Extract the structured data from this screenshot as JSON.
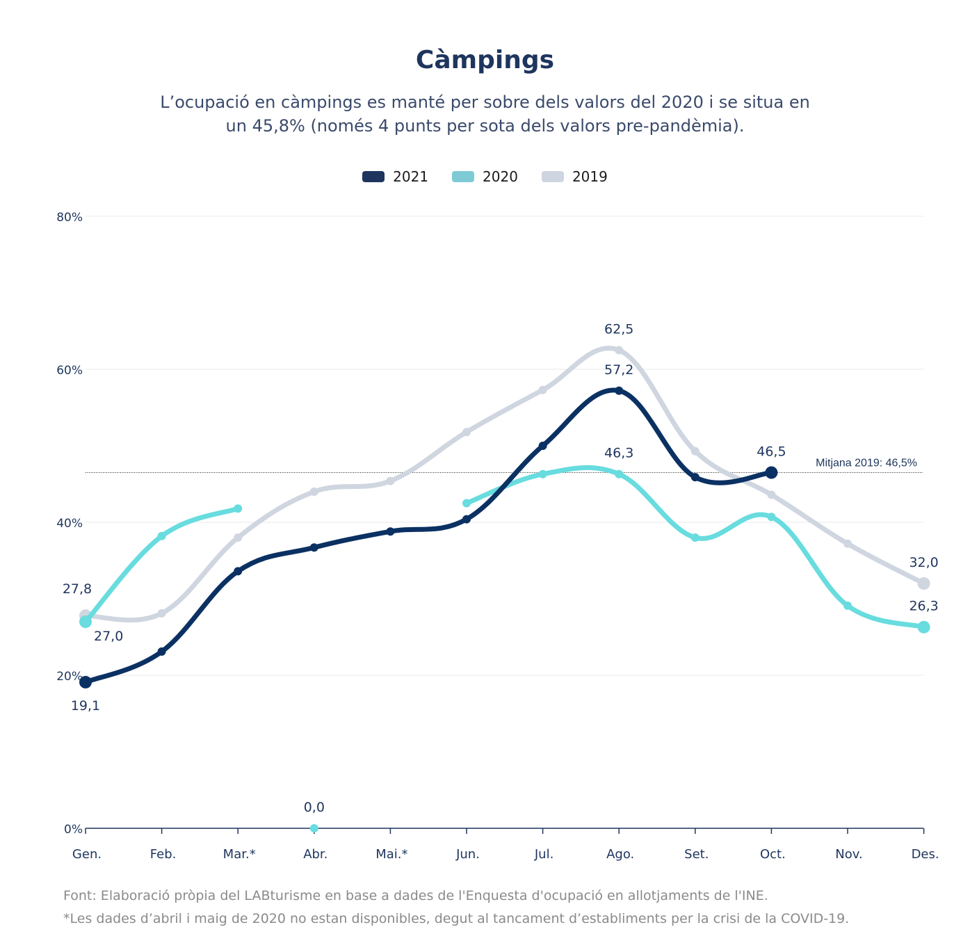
{
  "chart_data": {
    "type": "line",
    "title": "Càmpings",
    "subtitle_lines": [
      "L’ocupació en càmpings es manté per sobre dels valors del 2020 i se situa en",
      "un 45,8% (només 4 punts per sota dels valors pre-pandèmia)."
    ],
    "categories": [
      "Gen.",
      "Feb.",
      "Mar.*",
      "Abr.",
      "Mai.*",
      "Jun.",
      "Jul.",
      "Ago.",
      "Set.",
      "Oct.",
      "Nov.",
      "Des."
    ],
    "y_ticks": [
      {
        "value": 0,
        "label": "0%"
      },
      {
        "value": 20,
        "label": "20%"
      },
      {
        "value": 40,
        "label": "40%"
      },
      {
        "value": 60,
        "label": "60%"
      },
      {
        "value": 80,
        "label": "80%"
      }
    ],
    "ylim": [
      0,
      80
    ],
    "grid": "horizontal",
    "legend": "top-center",
    "series": [
      {
        "name": "2021",
        "color": "#1e355e",
        "line_color": "#0b3163",
        "values": [
          19.1,
          23.1,
          33.6,
          36.7,
          38.8,
          40.4,
          50.0,
          57.2,
          45.9,
          46.5,
          null,
          null
        ],
        "labels": [
          {
            "index": 0,
            "text": "19,1",
            "pos": "below"
          },
          {
            "index": 7,
            "text": "57,2",
            "pos": "above"
          },
          {
            "index": 9,
            "text": "46,5",
            "pos": "above"
          }
        ]
      },
      {
        "name": "2020",
        "color": "#7ecbd6",
        "line_color": "#68dcde",
        "values": [
          27.0,
          38.2,
          41.8,
          0.0,
          null,
          42.5,
          46.3,
          46.3,
          38.0,
          40.7,
          29.1,
          26.3
        ],
        "segments": [
          [
            0,
            2
          ],
          [
            3,
            3
          ],
          [
            5,
            11
          ]
        ],
        "labels": [
          {
            "index": 0,
            "text": "27,0",
            "pos": "below-right"
          },
          {
            "index": 3,
            "text": "0,0",
            "pos": "above"
          },
          {
            "index": 7,
            "text": "46,3",
            "pos": "above"
          },
          {
            "index": 11,
            "text": "26,3",
            "pos": "above"
          }
        ]
      },
      {
        "name": "2019",
        "color": "#cdd5e0",
        "line_color": "#cfd6e0",
        "values": [
          27.8,
          28.1,
          38.0,
          44.0,
          45.4,
          51.8,
          57.3,
          62.5,
          49.3,
          43.6,
          37.2,
          32.0
        ],
        "labels": [
          {
            "index": 0,
            "text": "27,8",
            "pos": "above-left"
          },
          {
            "index": 7,
            "text": "62,5",
            "pos": "above"
          },
          {
            "index": 11,
            "text": "32,0",
            "pos": "above"
          }
        ]
      }
    ],
    "reference_line": {
      "value": 46.5,
      "label": "Mitjana 2019: 46,5%"
    }
  },
  "footnotes": {
    "source": "Font: Elaboració pròpia del LABturisme en base a dades de l'Enquesta d'ocupació en allotjaments de l'INE.",
    "note": "*Les dades d’abril i maig de 2020 no estan disponibles, degut al tancament d’establiments per la crisi de la COVID-19."
  }
}
